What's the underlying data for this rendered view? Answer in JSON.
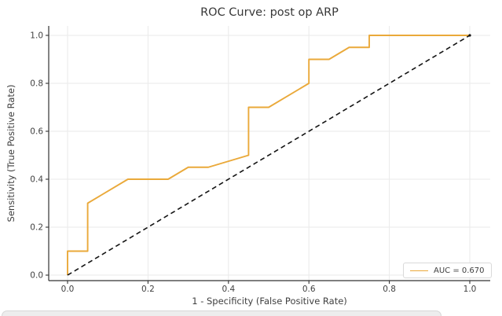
{
  "title": "ROC Curve: post op ARP",
  "axes": {
    "xlabel": "1 - Specificity (False Positive Rate)",
    "ylabel": "Sensitivity (True Positive Rate)",
    "x_tick_labels": [
      "0.0",
      "0.2",
      "0.4",
      "0.6",
      "0.8",
      "1.0"
    ],
    "y_tick_labels": [
      "0.0",
      "0.2",
      "0.4",
      "0.6",
      "0.8",
      "1.0"
    ]
  },
  "legend": {
    "label": "AUC = 0.670",
    "position": "lower right"
  },
  "colors": {
    "roc_line": "#eaa93a",
    "chance_line": "#141414",
    "grid": "#eaeaea",
    "spine": "#333333",
    "tick_text": "#3f3f3f",
    "title_text": "#383838",
    "legend_border": "#d9d9d9",
    "legend_bg": "#ffffff"
  },
  "chart_data": {
    "type": "line",
    "title": "ROC Curve: post op ARP",
    "xlabel": "1 - Specificity (False Positive Rate)",
    "ylabel": "Sensitivity (True Positive Rate)",
    "xlim": [
      -0.047,
      1.051
    ],
    "ylim": [
      -0.023,
      1.039
    ],
    "grid": true,
    "legend_position": "lower right",
    "auc": 0.67,
    "x_ticks": [
      0.0,
      0.2,
      0.4,
      0.6,
      0.8,
      1.0
    ],
    "y_ticks": [
      0.0,
      0.2,
      0.4,
      0.6,
      0.8,
      1.0
    ],
    "series": [
      {
        "name": "AUC = 0.670",
        "style": "solid",
        "color": "#eaa93a",
        "points": [
          [
            0.0,
            0.0
          ],
          [
            0.0,
            0.1
          ],
          [
            0.05,
            0.1
          ],
          [
            0.05,
            0.3
          ],
          [
            0.15,
            0.4
          ],
          [
            0.25,
            0.4
          ],
          [
            0.3,
            0.45
          ],
          [
            0.35,
            0.45
          ],
          [
            0.45,
            0.5
          ],
          [
            0.45,
            0.7
          ],
          [
            0.5,
            0.7
          ],
          [
            0.6,
            0.8
          ],
          [
            0.6,
            0.9
          ],
          [
            0.65,
            0.9
          ],
          [
            0.7,
            0.95
          ],
          [
            0.75,
            0.95
          ],
          [
            0.75,
            1.0
          ],
          [
            1.0,
            1.0
          ]
        ]
      },
      {
        "name": "chance",
        "style": "dashed",
        "color": "#141414",
        "points": [
          [
            0.0,
            0.0
          ],
          [
            1.0,
            1.0
          ]
        ]
      }
    ]
  }
}
